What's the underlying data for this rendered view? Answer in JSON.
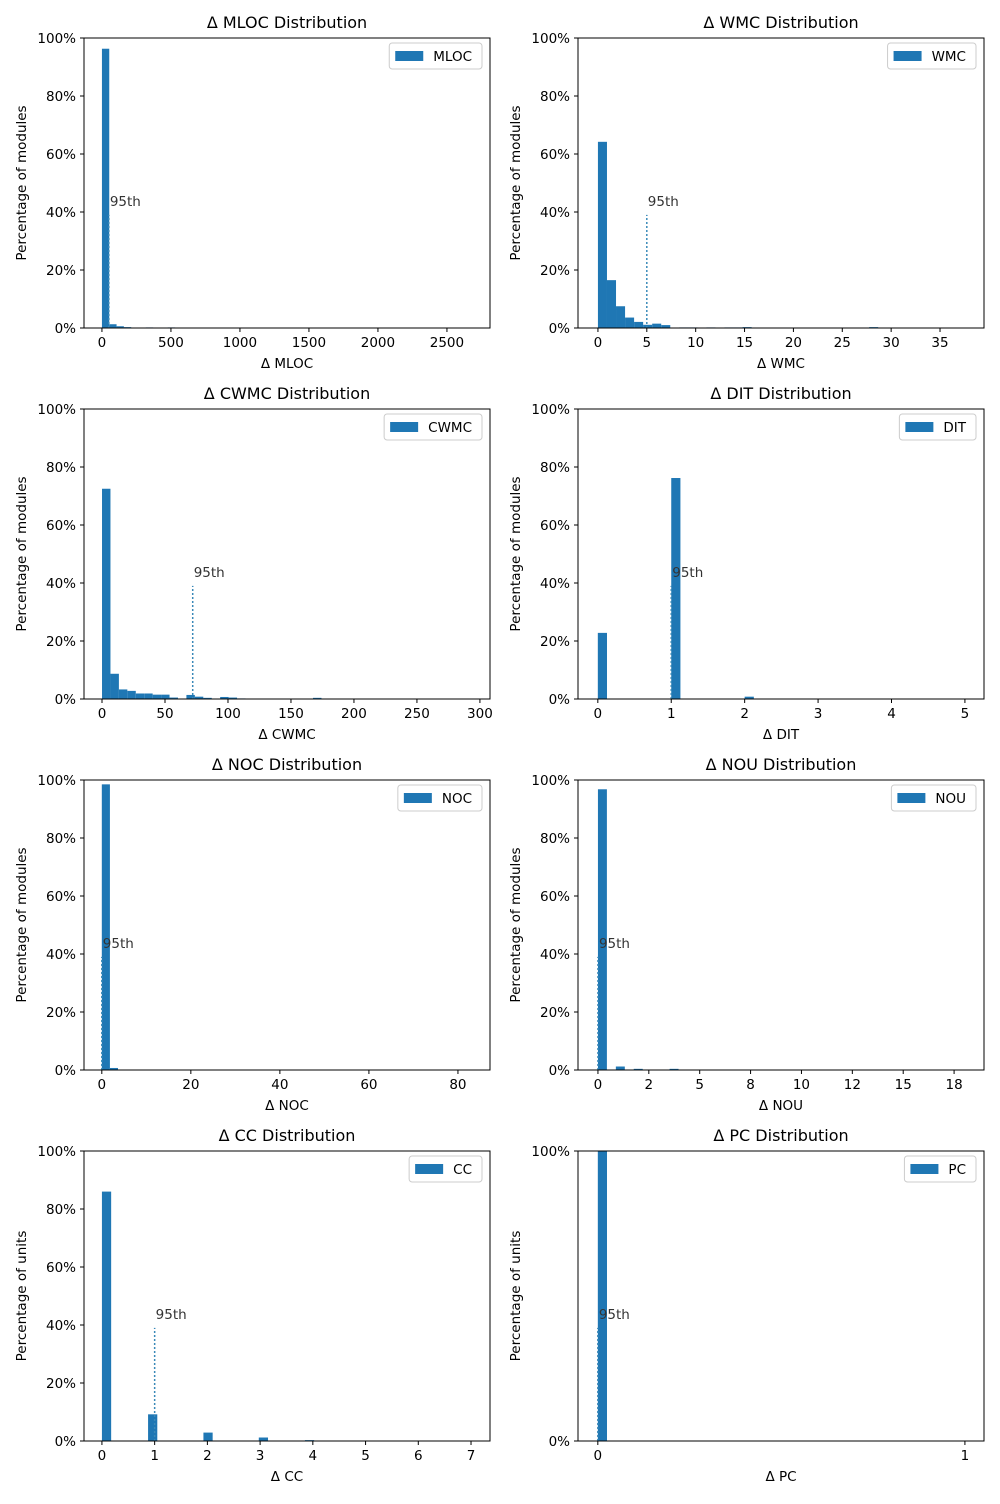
{
  "chart_data": [
    {
      "type": "histogram",
      "title": "Δ MLOC Distribution",
      "xlabel": "Δ MLOC",
      "ylabel": "Percentage of modules",
      "name": "MLOC",
      "color": "#1f77b4",
      "legend": "upper right",
      "bins": [
        0,
        53,
        106,
        159,
        212,
        265,
        318,
        371,
        424,
        477,
        530,
        583,
        636,
        689,
        742,
        795,
        848,
        901,
        954,
        1007,
        1060,
        1113,
        1166,
        1219,
        1272,
        1325,
        1378,
        1431,
        1484,
        1537,
        1590,
        1643,
        1696,
        1749,
        1802,
        1855,
        1908,
        1961,
        2014,
        2067,
        2120,
        2173,
        2226,
        2279,
        2332,
        2385,
        2438,
        2491,
        2544,
        2597,
        2650
      ],
      "values": [
        96.3,
        1.3,
        0.6,
        0.3,
        0,
        0,
        0.2,
        0,
        0,
        0.2,
        0,
        0,
        0,
        0,
        0,
        0,
        0,
        0,
        0,
        0,
        0,
        0,
        0,
        0,
        0,
        0,
        0,
        0,
        0,
        0,
        0,
        0,
        0,
        0,
        0,
        0,
        0,
        0,
        0,
        0,
        0,
        0,
        0,
        0,
        0,
        0,
        0,
        0,
        0,
        0
      ],
      "percentile": {
        "value": 50,
        "label": "95th"
      },
      "xlim": [
        -130,
        2812
      ],
      "xticks": [
        0,
        500,
        1000,
        1500,
        2000,
        2500
      ],
      "ylim": [
        0,
        100
      ],
      "yticks": [
        {
          "value": 0,
          "label": "0%"
        },
        {
          "value": 20,
          "label": "20%"
        },
        {
          "value": 40,
          "label": "40%"
        },
        {
          "value": 60,
          "label": "60%"
        },
        {
          "value": 80,
          "label": "80%"
        },
        {
          "value": 100,
          "label": "100%"
        }
      ]
    },
    {
      "type": "histogram",
      "title": "Δ WMC Distribution",
      "xlabel": "Δ WMC",
      "ylabel": "Percentage of modules",
      "name": "WMC",
      "color": "#1f77b4",
      "legend": "upper right",
      "bins": [
        0,
        0.925,
        1.85,
        2.775,
        3.7,
        4.625,
        5.55,
        6.475,
        7.4,
        8.325,
        9.25,
        10.175,
        11.1,
        12.025,
        12.95,
        13.875,
        14.8,
        15.725,
        16.65,
        17.575,
        18.5,
        19.425,
        20.35,
        21.275,
        22.2,
        23.125,
        24.05,
        24.975,
        25.9,
        26.825,
        27.75,
        28.675,
        29.6,
        30.525,
        31.45,
        32.375,
        33.3,
        34.225,
        35.15,
        36.075,
        37
      ],
      "values": [
        64.2,
        16.5,
        7.5,
        3.6,
        2.1,
        1.1,
        1.5,
        1.0,
        0,
        0.2,
        0.2,
        0,
        0.2,
        0,
        0.2,
        0.2,
        0.3,
        0,
        0,
        0,
        0,
        0,
        0,
        0,
        0,
        0,
        0,
        0,
        0,
        0,
        0.3,
        0,
        0,
        0,
        0,
        0,
        0,
        0,
        0,
        0
      ],
      "percentile": {
        "value": 5,
        "label": "95th"
      },
      "xlim": [
        -2.04,
        39.5
      ],
      "xticks": [
        0,
        5,
        10,
        15,
        20,
        25,
        30,
        35
      ],
      "ylim": [
        0,
        100
      ],
      "yticks": [
        {
          "value": 0,
          "label": "0%"
        },
        {
          "value": 20,
          "label": "20%"
        },
        {
          "value": 40,
          "label": "40%"
        },
        {
          "value": 60,
          "label": "60%"
        },
        {
          "value": 80,
          "label": "80%"
        },
        {
          "value": 100,
          "label": "100%"
        }
      ]
    },
    {
      "type": "histogram",
      "title": "Δ CWMC Distribution",
      "xlabel": "Δ CWMC",
      "ylabel": "Percentage of modules",
      "name": "CWMC",
      "color": "#1f77b4",
      "legend": "upper right",
      "bins": [
        0,
        6.7,
        13.4,
        20.1,
        26.8,
        33.5,
        40.2,
        46.9,
        53.6,
        60.3,
        67,
        73.7,
        80.4,
        87.1,
        93.8,
        100.5,
        107.2,
        113.9,
        120.6,
        127.3,
        134,
        140.7,
        147.4,
        154.1,
        160.8,
        167.5,
        174.2,
        180.9,
        187.6,
        194.3,
        201,
        207.7,
        214.4,
        221.1,
        227.8,
        234.5,
        241.2,
        247.9,
        254.6,
        261.3,
        268,
        274.7,
        281.4,
        288.1,
        294.8
      ],
      "values": [
        72.5,
        8.7,
        3.3,
        2.8,
        1.9,
        1.9,
        1.5,
        1.5,
        0.5,
        0,
        1.4,
        0.8,
        0.4,
        0,
        0.7,
        0.5,
        0.2,
        0,
        0,
        0,
        0,
        0,
        0,
        0,
        0,
        0.4,
        0,
        0,
        0,
        0,
        0,
        0,
        0,
        0,
        0,
        0,
        0,
        0,
        0,
        0,
        0,
        0,
        0,
        0
      ],
      "percentile": {
        "value": 72,
        "label": "95th"
      },
      "xlim": [
        -14.3,
        308
      ],
      "xticks": [
        0,
        50,
        100,
        150,
        200,
        250,
        300
      ],
      "ylim": [
        0,
        100
      ],
      "yticks": [
        {
          "value": 0,
          "label": "0%"
        },
        {
          "value": 20,
          "label": "20%"
        },
        {
          "value": 40,
          "label": "40%"
        },
        {
          "value": 60,
          "label": "60%"
        },
        {
          "value": 80,
          "label": "80%"
        },
        {
          "value": 100,
          "label": "100%"
        }
      ]
    },
    {
      "type": "histogram",
      "title": "Δ DIT Distribution",
      "xlabel": "Δ DIT",
      "ylabel": "Percentage of modules",
      "name": "DIT",
      "color": "#1f77b4",
      "legend": "upper right",
      "bins": [
        0,
        0.125,
        0.25,
        0.375,
        0.5,
        0.625,
        0.75,
        0.875,
        1,
        1.125,
        1.25,
        1.375,
        1.5,
        1.625,
        1.75,
        1.875,
        2,
        2.125,
        2.25,
        2.375,
        2.5,
        2.625,
        2.75,
        2.875,
        3,
        3.125,
        3.25,
        3.375,
        3.5,
        3.625,
        3.75,
        3.875,
        4,
        4.125,
        4.25,
        4.375,
        4.5,
        4.625,
        4.75,
        4.875,
        5
      ],
      "values": [
        22.8,
        0,
        0,
        0,
        0,
        0,
        0,
        0,
        76.2,
        0,
        0,
        0,
        0,
        0,
        0,
        0,
        0.8,
        0,
        0,
        0,
        0,
        0,
        0,
        0,
        0,
        0,
        0,
        0,
        0,
        0,
        0,
        0,
        0.1,
        0,
        0,
        0,
        0,
        0,
        0,
        0
      ],
      "percentile": {
        "value": 1,
        "label": "95th"
      },
      "xlim": [
        -0.27,
        5.26
      ],
      "xticks": [
        0,
        1,
        2,
        3,
        4,
        5
      ],
      "ylim": [
        0,
        100
      ],
      "yticks": [
        {
          "value": 0,
          "label": "0%"
        },
        {
          "value": 20,
          "label": "20%"
        },
        {
          "value": 40,
          "label": "40%"
        },
        {
          "value": 60,
          "label": "60%"
        },
        {
          "value": 80,
          "label": "80%"
        },
        {
          "value": 100,
          "label": "100%"
        }
      ]
    },
    {
      "type": "histogram",
      "title": "Δ NOC Distribution",
      "xlabel": "Δ NOC",
      "ylabel": "Percentage of modules",
      "name": "NOC",
      "color": "#1f77b4",
      "legend": "upper right",
      "bins": [
        0,
        1.82,
        3.64,
        5.46,
        7.28,
        9.1,
        10.92,
        12.74,
        14.56,
        16.38,
        18.2,
        20.02,
        21.84,
        23.66,
        25.48,
        27.3,
        29.12,
        30.94,
        32.76,
        34.58,
        36.4,
        38.22,
        40.04,
        41.86,
        43.68,
        45.5,
        47.32,
        49.14,
        50.96,
        52.78,
        54.6,
        56.42,
        58.24,
        60.06,
        61.88,
        63.7,
        65.52,
        67.34,
        69.16,
        70.98,
        72.8,
        74.62,
        76.44,
        78.26,
        80.08,
        81.9
      ],
      "values": [
        98.5,
        0.7,
        0,
        0,
        0,
        0,
        0,
        0,
        0,
        0,
        0,
        0,
        0,
        0,
        0,
        0,
        0,
        0,
        0,
        0,
        0,
        0,
        0,
        0,
        0,
        0,
        0,
        0,
        0,
        0,
        0,
        0,
        0,
        0,
        0,
        0,
        0,
        0,
        0,
        0,
        0,
        0,
        0,
        0,
        0
      ],
      "percentile": {
        "value": 0,
        "label": "95th"
      },
      "xlim": [
        -4.0,
        87.2
      ],
      "xticks": [
        0,
        20,
        40,
        60,
        80
      ],
      "ylim": [
        0,
        100
      ],
      "yticks": [
        {
          "value": 0,
          "label": "0%"
        },
        {
          "value": 20,
          "label": "20%"
        },
        {
          "value": 40,
          "label": "40%"
        },
        {
          "value": 60,
          "label": "60%"
        },
        {
          "value": 80,
          "label": "80%"
        },
        {
          "value": 100,
          "label": "100%"
        }
      ]
    },
    {
      "type": "histogram",
      "title": "Δ NOU Distribution",
      "xlabel": "Δ NOU",
      "ylabel": "Percentage of modules",
      "name": "NOU",
      "color": "#1f77b4",
      "legend": "upper right",
      "bins": [
        0,
        0.44,
        0.88,
        1.32,
        1.76,
        2.2,
        2.64,
        3.08,
        3.52,
        3.96,
        4.4,
        4.84,
        5.28,
        5.72,
        6.16,
        6.6,
        7.04,
        7.48,
        7.92,
        8.36,
        8.8,
        9.24,
        9.68,
        10.12,
        10.56,
        11,
        11.44,
        11.88,
        12.32,
        12.76,
        13.2,
        13.64,
        14.08,
        14.52,
        14.96,
        15.4,
        15.84,
        16.28,
        16.72,
        17.16,
        17.6,
        18.04,
        18.48
      ],
      "values": [
        96.8,
        0,
        1.2,
        0,
        0.4,
        0,
        0,
        0,
        0.4,
        0,
        0,
        0,
        0,
        0,
        0,
        0,
        0,
        0,
        0,
        0,
        0,
        0,
        0,
        0,
        0,
        0,
        0,
        0,
        0,
        0,
        0,
        0,
        0,
        0,
        0,
        0,
        0,
        0,
        0,
        0,
        0,
        0
      ],
      "percentile": {
        "value": 0,
        "label": "95th"
      },
      "xlim": [
        -0.98,
        18.97
      ],
      "xticks": [
        0,
        {
          "value": 2.5,
          "label": "2"
        },
        5,
        {
          "value": 7.5,
          "label": "8"
        },
        10,
        {
          "value": 12.5,
          "label": "12"
        },
        15,
        {
          "value": 17.5,
          "label": "18"
        }
      ],
      "ylim": [
        0,
        100
      ],
      "yticks": [
        {
          "value": 0,
          "label": "0%"
        },
        {
          "value": 20,
          "label": "20%"
        },
        {
          "value": 40,
          "label": "40%"
        },
        {
          "value": 60,
          "label": "60%"
        },
        {
          "value": 80,
          "label": "80%"
        },
        {
          "value": 100,
          "label": "100%"
        }
      ]
    },
    {
      "type": "histogram",
      "title": "Δ CC Distribution",
      "xlabel": "Δ CC",
      "ylabel": "Percentage of units",
      "name": "CC",
      "color": "#1f77b4",
      "legend": "upper right",
      "bins": [
        0,
        0.175,
        0.35,
        0.525,
        0.7,
        0.875,
        1.05,
        1.225,
        1.4,
        1.575,
        1.75,
        1.925,
        2.1,
        2.275,
        2.45,
        2.625,
        2.8,
        2.975,
        3.15,
        3.325,
        3.5,
        3.675,
        3.85,
        4.025,
        4.2,
        4.375,
        4.55,
        4.725,
        4.9,
        5.075,
        5.25,
        5.425,
        5.6,
        5.775,
        5.95,
        6.125,
        6.3,
        6.475,
        6.65,
        6.825,
        7
      ],
      "values": [
        86,
        0,
        0,
        0,
        0,
        9.2,
        0,
        0,
        0,
        0,
        0,
        2.9,
        0,
        0,
        0,
        0,
        0,
        1.2,
        0,
        0,
        0,
        0,
        0.3,
        0,
        0,
        0,
        0,
        0,
        0,
        0,
        0,
        0,
        0,
        0,
        0,
        0,
        0,
        0,
        0,
        0
      ],
      "percentile": {
        "value": 1,
        "label": "95th"
      },
      "xlim": [
        -0.34,
        7.36
      ],
      "xticks": [
        0,
        1,
        2,
        3,
        4,
        5,
        6,
        7
      ],
      "ylim": [
        0,
        100
      ],
      "yticks": [
        {
          "value": 0,
          "label": "0%"
        },
        {
          "value": 20,
          "label": "20%"
        },
        {
          "value": 40,
          "label": "40%"
        },
        {
          "value": 60,
          "label": "60%"
        },
        {
          "value": 80,
          "label": "80%"
        },
        {
          "value": 100,
          "label": "100%"
        }
      ]
    },
    {
      "type": "histogram",
      "title": "Δ PC Distribution",
      "xlabel": "Δ PC",
      "ylabel": "Percentage of units",
      "name": "PC",
      "color": "#1f77b4",
      "legend": "upper right",
      "bins": [
        0,
        0.025,
        0.05,
        0.075,
        0.1,
        0.125,
        0.15,
        0.175,
        0.2,
        0.225,
        0.25,
        0.275,
        0.3,
        0.325,
        0.35,
        0.375,
        0.4,
        0.425,
        0.45,
        0.475,
        0.5,
        0.525,
        0.55,
        0.575,
        0.6,
        0.625,
        0.65,
        0.675,
        0.7,
        0.725,
        0.75,
        0.775,
        0.8,
        0.825,
        0.85,
        0.875,
        0.9,
        0.925,
        0.95,
        0.975,
        1
      ],
      "values": [
        99.9,
        0,
        0,
        0,
        0,
        0,
        0,
        0,
        0,
        0,
        0,
        0,
        0,
        0,
        0,
        0,
        0,
        0,
        0,
        0,
        0,
        0,
        0,
        0,
        0,
        0,
        0,
        0,
        0,
        0,
        0,
        0,
        0,
        0,
        0,
        0,
        0,
        0,
        0,
        0.1
      ],
      "percentile": {
        "value": 0,
        "label": "95th"
      },
      "xlim": [
        -0.054,
        1.052
      ],
      "xticks": [
        0,
        1
      ],
      "ylim": [
        0,
        100
      ],
      "yticks": [
        {
          "value": 0,
          "label": "0%"
        },
        {
          "value": 100,
          "label": "100%"
        }
      ]
    }
  ]
}
